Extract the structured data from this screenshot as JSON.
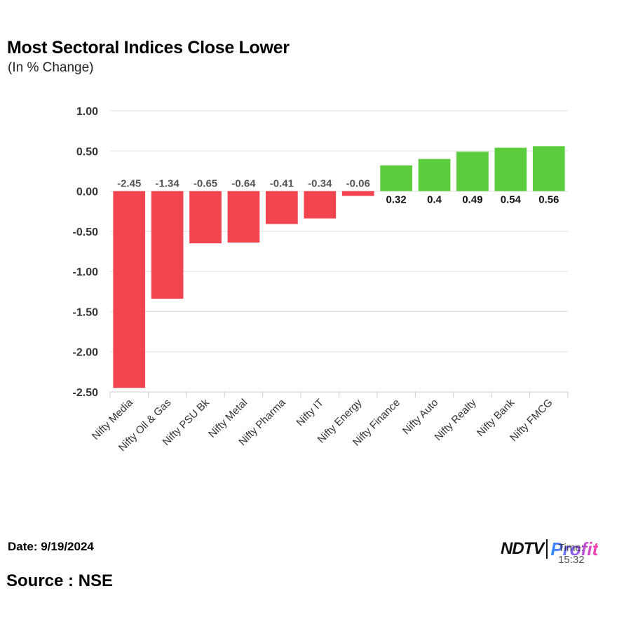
{
  "header": {
    "title": "Most Sectoral Indices Close Lower",
    "subtitle": "(In % Change)"
  },
  "footer": {
    "date": "Date: 9/19/2024",
    "source": "Source : NSE",
    "logo_brand": "NDTV",
    "logo_product": "Profit",
    "time_overlay": "Time: 15:32"
  },
  "colors": {
    "negative": "#f2444f",
    "positive": "#5bcc3d",
    "grid": "#dddddd",
    "negative_label": "#555555",
    "positive_label": "#111111"
  },
  "chart_data": {
    "type": "bar",
    "title": "Most Sectoral Indices Close Lower",
    "subtitle": "(In % Change)",
    "xlabel": "",
    "ylabel": "",
    "ylim": [
      -2.5,
      1.0
    ],
    "y_ticks": [
      1.0,
      0.5,
      0.0,
      -0.5,
      -1.0,
      -1.5,
      -2.0,
      -2.5
    ],
    "y_tick_labels": [
      "1.00",
      "0.50",
      "0.00",
      "-0.50",
      "-1.00",
      "-1.50",
      "-2.00",
      "-2.50"
    ],
    "grid": true,
    "categories": [
      "Nifty Media",
      "Nifty Oil & Gas",
      "Nifty PSU Bk",
      "Nifty Metal",
      "Nifty Pharma",
      "Nifty IT",
      "Nifty Energy",
      "Nifty Finance",
      "Nifty Auto",
      "Nifty Realty",
      "Nifty Bank",
      "Nifty FMCG"
    ],
    "values": [
      -2.45,
      -1.34,
      -0.65,
      -0.64,
      -0.41,
      -0.34,
      -0.06,
      0.32,
      0.4,
      0.49,
      0.54,
      0.56
    ],
    "data_labels": [
      "-2.45",
      "-1.34",
      "-0.65",
      "-0.64",
      "-0.41",
      "-0.34",
      "-0.06",
      "0.32",
      "0.4",
      "0.49",
      "0.54",
      "0.56"
    ]
  }
}
